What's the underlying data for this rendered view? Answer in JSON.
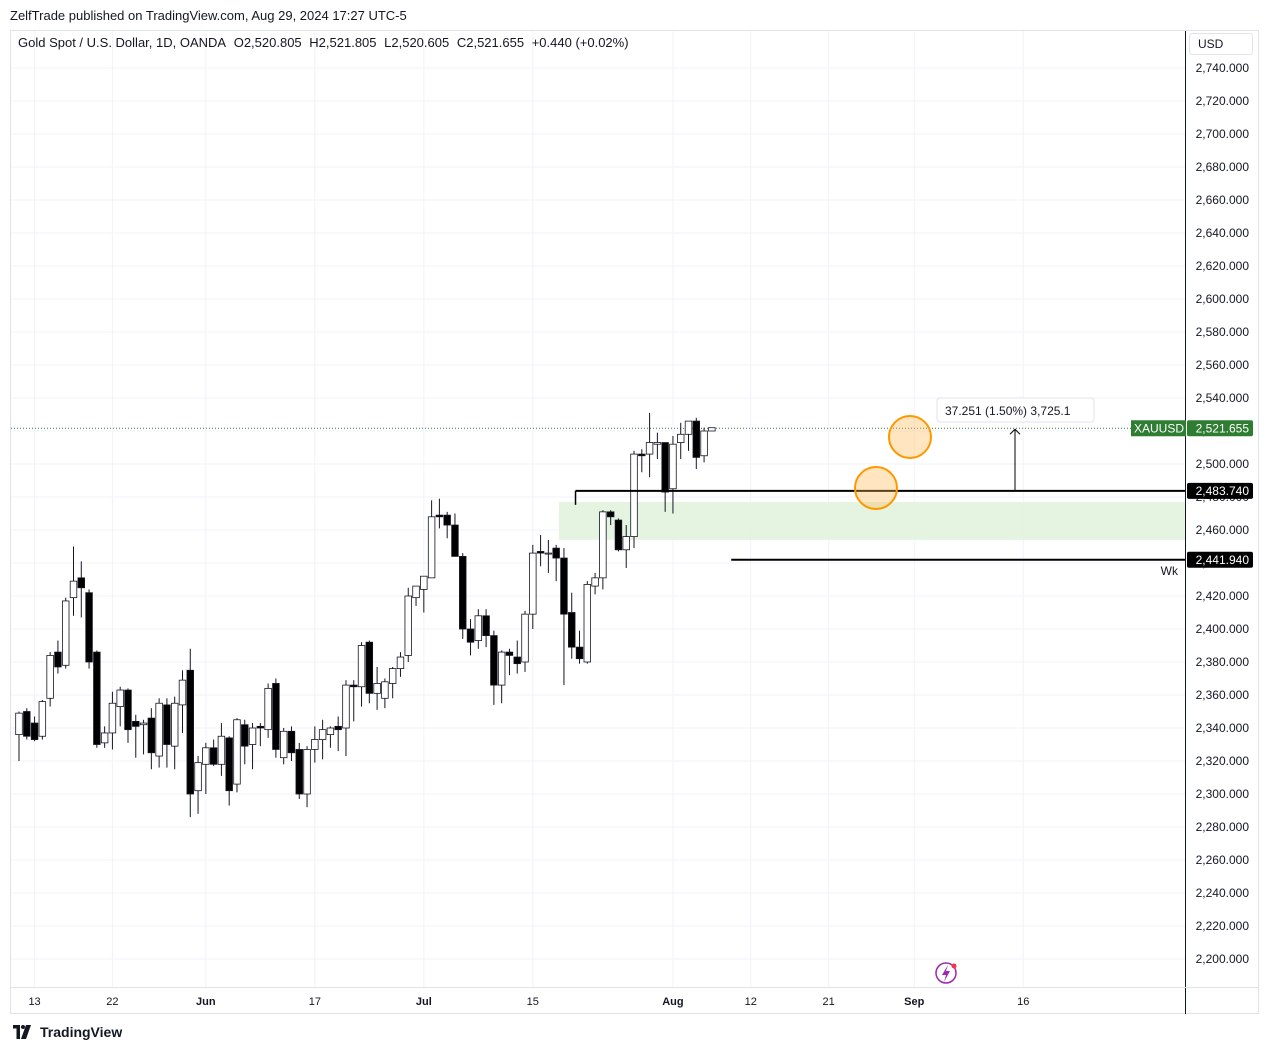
{
  "publisher_line": "ZelfTrade published on TradingView.com, Aug 29, 2024 17:27 UTC-5",
  "legend": {
    "symbol": "Gold Spot / U.S. Dollar, 1D, OANDA",
    "open": "O2,520.805",
    "high": "H2,521.805",
    "low": "L2,520.605",
    "close": "C2,521.655",
    "change": "+0.440 (+0.02%)"
  },
  "currency_button": "USD",
  "footer_brand": "TradingView",
  "colors": {
    "up": "#ffffff",
    "down": "#000000",
    "price_label": "#2e7d32",
    "zone": "#dff2dc",
    "circle": "#ff9800"
  },
  "chart_data": {
    "type": "candlestick",
    "symbol": "XAUUSD",
    "ylim": [
      2188,
      2752
    ],
    "yticks": [
      "2,740.000",
      "2,720.000",
      "2,700.000",
      "2,680.000",
      "2,660.000",
      "2,640.000",
      "2,620.000",
      "2,600.000",
      "2,580.000",
      "2,560.000",
      "2,540.000",
      "2,520.000",
      "2,500.000",
      "2,480.000",
      "2,460.000",
      "2,440.000",
      "2,420.000",
      "2,400.000",
      "2,380.000",
      "2,360.000",
      "2,340.000",
      "2,320.000",
      "2,300.000",
      "2,280.000",
      "2,260.000",
      "2,240.000",
      "2,220.000",
      "2,200.000"
    ],
    "xticks": [
      {
        "label": "13",
        "index": 2
      },
      {
        "label": "22",
        "index": 12
      },
      {
        "label": "Jun",
        "index": 24
      },
      {
        "label": "17",
        "index": 38
      },
      {
        "label": "Jul",
        "index": 52
      },
      {
        "label": "15",
        "index": 66
      },
      {
        "label": "Aug",
        "index": 84
      },
      {
        "label": "12",
        "index": 94
      },
      {
        "label": "21",
        "index": 104
      },
      {
        "label": "Sep",
        "index": 115
      },
      {
        "label": "16",
        "index": 129
      }
    ],
    "candles": [
      [
        2336,
        2349,
        2320,
        2350
      ],
      [
        2350,
        2335,
        2333,
        2352
      ],
      [
        2343,
        2333,
        2332,
        2347
      ],
      [
        2335,
        2356,
        2333,
        2357
      ],
      [
        2358,
        2384,
        2353,
        2386
      ],
      [
        2386,
        2377,
        2373,
        2393
      ],
      [
        2378,
        2417,
        2376,
        2419
      ],
      [
        2419,
        2429,
        2408,
        2450
      ],
      [
        2431,
        2425,
        2407,
        2441
      ],
      [
        2422,
        2380,
        2376,
        2424
      ],
      [
        2386,
        2330,
        2328,
        2387
      ],
      [
        2331,
        2337,
        2328,
        2341
      ],
      [
        2337,
        2355,
        2327,
        2362
      ],
      [
        2353,
        2363,
        2341,
        2365
      ],
      [
        2363,
        2339,
        2331,
        2364
      ],
      [
        2344,
        2341,
        2322,
        2348
      ],
      [
        2342,
        2343,
        2324,
        2345
      ],
      [
        2346,
        2325,
        2315,
        2352
      ],
      [
        2323,
        2355,
        2316,
        2358
      ],
      [
        2354,
        2330,
        2316,
        2358
      ],
      [
        2329,
        2355,
        2315,
        2359
      ],
      [
        2354,
        2369,
        2337,
        2375
      ],
      [
        2375,
        2300,
        2286,
        2388
      ],
      [
        2302,
        2319,
        2288,
        2323
      ],
      [
        2318,
        2328,
        2300,
        2331
      ],
      [
        2328,
        2318,
        2317,
        2333
      ],
      [
        2318,
        2335,
        2311,
        2343
      ],
      [
        2334,
        2302,
        2293,
        2335
      ],
      [
        2306,
        2345,
        2301,
        2346
      ],
      [
        2342,
        2329,
        2318,
        2345
      ],
      [
        2330,
        2340,
        2315,
        2343
      ],
      [
        2341,
        2340,
        2329,
        2343
      ],
      [
        2339,
        2364,
        2334,
        2367
      ],
      [
        2367,
        2327,
        2322,
        2370
      ],
      [
        2322,
        2338,
        2318,
        2340
      ],
      [
        2338,
        2325,
        2320,
        2341
      ],
      [
        2327,
        2300,
        2297,
        2331
      ],
      [
        2300,
        2327,
        2292,
        2329
      ],
      [
        2327,
        2333,
        2319,
        2341
      ],
      [
        2333,
        2339,
        2321,
        2345
      ],
      [
        2336,
        2340,
        2328,
        2341
      ],
      [
        2341,
        2339,
        2326,
        2347
      ],
      [
        2340,
        2366,
        2323,
        2369
      ],
      [
        2366,
        2365,
        2344,
        2369
      ],
      [
        2365,
        2390,
        2353,
        2392
      ],
      [
        2392,
        2361,
        2355,
        2393
      ],
      [
        2361,
        2367,
        2351,
        2377
      ],
      [
        2358,
        2368,
        2352,
        2370
      ],
      [
        2367,
        2376,
        2358,
        2377
      ],
      [
        2376,
        2383,
        2371,
        2386
      ],
      [
        2384,
        2420,
        2380,
        2425
      ],
      [
        2419,
        2426,
        2414,
        2426
      ],
      [
        2424,
        2432,
        2410,
        2431
      ],
      [
        2431,
        2468,
        2431,
        2478
      ],
      [
        2469,
        2468,
        2461,
        2479
      ],
      [
        2469,
        2463,
        2455,
        2471
      ],
      [
        2463,
        2444,
        2445,
        2470
      ],
      [
        2444,
        2400,
        2394,
        2446
      ],
      [
        2400,
        2392,
        2384,
        2406
      ],
      [
        2393,
        2408,
        2388,
        2412
      ],
      [
        2408,
        2396,
        2389,
        2412
      ],
      [
        2396,
        2366,
        2354,
        2399
      ],
      [
        2366,
        2386,
        2355,
        2387
      ],
      [
        2386,
        2384,
        2372,
        2388
      ],
      [
        2383,
        2379,
        2373,
        2393
      ],
      [
        2380,
        2409,
        2374,
        2411
      ],
      [
        2409,
        2446,
        2400,
        2451
      ],
      [
        2447,
        2446,
        2438,
        2457
      ],
      [
        2446,
        2446,
        2434,
        2454
      ],
      [
        2449,
        2443,
        2429,
        2451
      ],
      [
        2443,
        2409,
        2366,
        2449
      ],
      [
        2410,
        2389,
        2382,
        2422
      ],
      [
        2389,
        2382,
        2379,
        2399
      ],
      [
        2380,
        2427,
        2379,
        2429
      ],
      [
        2426,
        2431,
        2421,
        2434
      ],
      [
        2431,
        2471,
        2424,
        2472
      ],
      [
        2471,
        2468,
        2463,
        2472
      ],
      [
        2466,
        2448,
        2447,
        2467
      ],
      [
        2448,
        2456,
        2437,
        2463
      ],
      [
        2456,
        2506,
        2449,
        2508
      ],
      [
        2506,
        2505,
        2495,
        2509
      ],
      [
        2506,
        2513,
        2492,
        2531
      ],
      [
        2512,
        2513,
        2503,
        2519
      ],
      [
        2513,
        2483,
        2471,
        2512
      ],
      [
        2485,
        2512,
        2470,
        2517
      ],
      [
        2513,
        2518,
        2503,
        2525
      ],
      [
        2518,
        2526,
        2508,
        2526
      ],
      [
        2526,
        2504,
        2497,
        2528
      ],
      [
        2505,
        2520,
        2501,
        2522
      ],
      [
        2520,
        2522,
        2520,
        2522
      ]
    ],
    "candle_start_day": "2024-05-10",
    "horizontal_levels": [
      {
        "price": 2483.74,
        "label": "2,483.740"
      },
      {
        "price": 2441.94,
        "label": "2,441.940",
        "note": "Wk"
      }
    ],
    "zone": {
      "top": 2477,
      "bottom": 2454
    },
    "current_price": {
      "label": "XAUUSD",
      "value": "2,521.655",
      "price": 2521.655
    },
    "measure_label": "37.251 (1.50%) 3,725.1",
    "grid": true
  }
}
